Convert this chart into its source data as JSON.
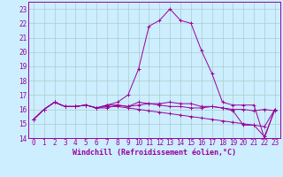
{
  "xlabel": "Windchill (Refroidissement éolien,°C)",
  "hours": [
    0,
    1,
    2,
    3,
    4,
    5,
    6,
    7,
    8,
    9,
    10,
    11,
    12,
    13,
    14,
    15,
    16,
    17,
    18,
    19,
    20,
    21,
    22,
    23
  ],
  "series1": [
    15.3,
    16.0,
    16.5,
    16.2,
    16.2,
    16.3,
    16.1,
    16.1,
    16.3,
    16.2,
    16.5,
    16.4,
    16.3,
    16.2,
    16.2,
    16.1,
    16.1,
    16.2,
    16.1,
    16.0,
    16.0,
    15.9,
    16.0,
    15.9
  ],
  "series2": [
    15.3,
    16.0,
    16.5,
    16.2,
    16.2,
    16.3,
    16.1,
    16.3,
    16.5,
    17.0,
    18.8,
    21.8,
    22.2,
    23.0,
    22.2,
    22.0,
    20.1,
    18.5,
    16.5,
    16.3,
    16.3,
    16.3,
    14.0,
    16.0
  ],
  "series3": [
    15.3,
    16.0,
    16.5,
    16.2,
    16.2,
    16.3,
    16.1,
    16.3,
    16.3,
    16.2,
    16.3,
    16.4,
    16.4,
    16.5,
    16.4,
    16.4,
    16.2,
    16.2,
    16.1,
    15.9,
    14.9,
    14.9,
    14.1,
    16.0
  ],
  "series4": [
    15.3,
    16.0,
    16.5,
    16.2,
    16.2,
    16.3,
    16.1,
    16.2,
    16.2,
    16.1,
    16.0,
    15.9,
    15.8,
    15.7,
    15.6,
    15.5,
    15.4,
    15.3,
    15.2,
    15.1,
    15.0,
    14.9,
    14.8,
    16.0
  ],
  "color": "#990099",
  "bg_color": "#cceeff",
  "grid_color": "#aacccc",
  "ylim": [
    14,
    23.5
  ],
  "yticks": [
    14,
    15,
    16,
    17,
    18,
    19,
    20,
    21,
    22,
    23
  ],
  "marker": "+",
  "markersize": 3,
  "linewidth": 0.7,
  "tick_fontsize": 5.5,
  "xlabel_fontsize": 6.0
}
